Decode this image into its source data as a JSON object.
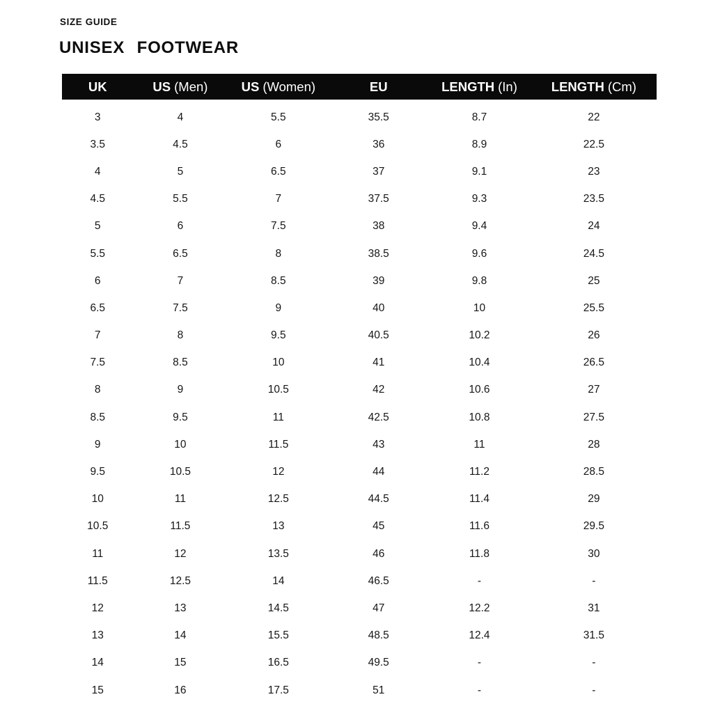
{
  "header": {
    "eyebrow": "SIZE GUIDE",
    "title": "UNISEX  FOOTWEAR"
  },
  "colors": {
    "background": "#ffffff",
    "table_header_bg": "#0a0a0a",
    "table_header_text": "#ffffff",
    "body_text": "#161616"
  },
  "table": {
    "columns": [
      {
        "bold": "UK",
        "light": ""
      },
      {
        "bold": "US",
        "light": "(Men)"
      },
      {
        "bold": "US",
        "light": "(Women)"
      },
      {
        "bold": "EU",
        "light": ""
      },
      {
        "bold": "LENGTH",
        "light": "(In)"
      },
      {
        "bold": "LENGTH",
        "light": "(Cm)"
      }
    ],
    "rows": [
      [
        "3",
        "4",
        "5.5",
        "35.5",
        "8.7",
        "22"
      ],
      [
        "3.5",
        "4.5",
        "6",
        "36",
        "8.9",
        "22.5"
      ],
      [
        "4",
        "5",
        "6.5",
        "37",
        "9.1",
        "23"
      ],
      [
        "4.5",
        "5.5",
        "7",
        "37.5",
        "9.3",
        "23.5"
      ],
      [
        "5",
        "6",
        "7.5",
        "38",
        "9.4",
        "24"
      ],
      [
        "5.5",
        "6.5",
        "8",
        "38.5",
        "9.6",
        "24.5"
      ],
      [
        "6",
        "7",
        "8.5",
        "39",
        "9.8",
        "25"
      ],
      [
        "6.5",
        "7.5",
        "9",
        "40",
        "10",
        "25.5"
      ],
      [
        "7",
        "8",
        "9.5",
        "40.5",
        "10.2",
        "26"
      ],
      [
        "7.5",
        "8.5",
        "10",
        "41",
        "10.4",
        "26.5"
      ],
      [
        "8",
        "9",
        "10.5",
        "42",
        "10.6",
        "27"
      ],
      [
        "8.5",
        "9.5",
        "11",
        "42.5",
        "10.8",
        "27.5"
      ],
      [
        "9",
        "10",
        "11.5",
        "43",
        "11",
        "28"
      ],
      [
        "9.5",
        "10.5",
        "12",
        "44",
        "11.2",
        "28.5"
      ],
      [
        "10",
        "11",
        "12.5",
        "44.5",
        "11.4",
        "29"
      ],
      [
        "10.5",
        "11.5",
        "13",
        "45",
        "11.6",
        "29.5"
      ],
      [
        "11",
        "12",
        "13.5",
        "46",
        "11.8",
        "30"
      ],
      [
        "11.5",
        "12.5",
        "14",
        "46.5",
        "-",
        "-"
      ],
      [
        "12",
        "13",
        "14.5",
        "47",
        "12.2",
        "31"
      ],
      [
        "13",
        "14",
        "15.5",
        "48.5",
        "12.4",
        "31.5"
      ],
      [
        "14",
        "15",
        "16.5",
        "49.5",
        "-",
        "-"
      ],
      [
        "15",
        "16",
        "17.5",
        "51",
        "-",
        "-"
      ]
    ]
  }
}
